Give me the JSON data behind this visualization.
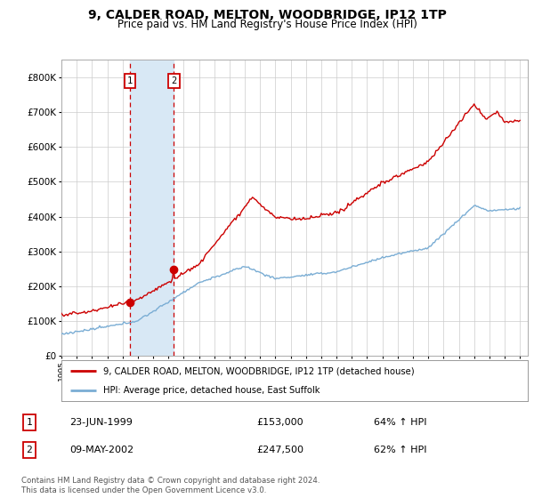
{
  "title": "9, CALDER ROAD, MELTON, WOODBRIDGE, IP12 1TP",
  "subtitle": "Price paid vs. HM Land Registry's House Price Index (HPI)",
  "legend_line1": "9, CALDER ROAD, MELTON, WOODBRIDGE, IP12 1TP (detached house)",
  "legend_line2": "HPI: Average price, detached house, East Suffolk",
  "sale1_date": "23-JUN-1999",
  "sale1_price": 153000,
  "sale1_label": "64% ↑ HPI",
  "sale2_date": "09-MAY-2002",
  "sale2_price": 247500,
  "sale2_label": "62% ↑ HPI",
  "footer": "Contains HM Land Registry data © Crown copyright and database right 2024.\nThis data is licensed under the Open Government Licence v3.0.",
  "sale1_year": 1999.47,
  "sale2_year": 2002.36,
  "hpi_color": "#7aadd4",
  "price_color": "#cc0000",
  "vline_color": "#cc0000",
  "shade_color": "#d8e8f5",
  "background_color": "#ffffff",
  "grid_color": "#cccccc",
  "ylim_max": 800000,
  "xmin": 1995,
  "xmax": 2025
}
